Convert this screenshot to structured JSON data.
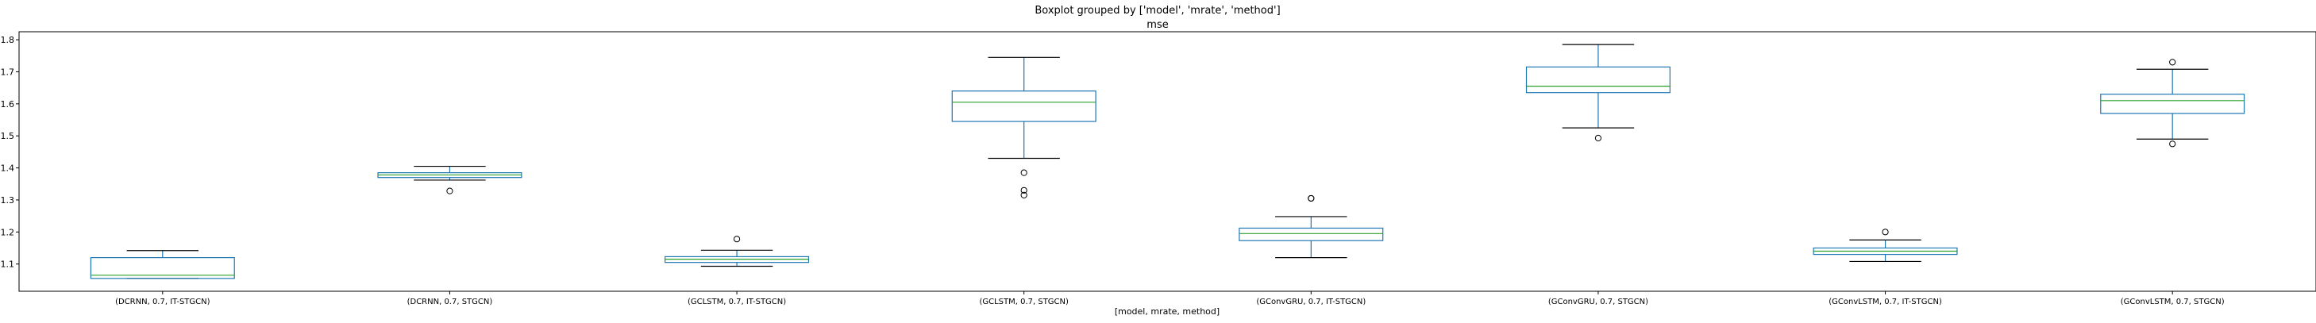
{
  "suptitle": "Boxplot grouped by ['model', 'mrate', 'method']",
  "chart_data": {
    "type": "box",
    "title": "mse",
    "xlabel": "[model, mrate, method]",
    "ylabel": "",
    "ylim": [
      1.015,
      1.825
    ],
    "yticks": [
      1.1,
      1.2,
      1.3,
      1.4,
      1.5,
      1.6,
      1.7,
      1.8
    ],
    "grid": false,
    "colors": {
      "box": "#1f77b4",
      "median": "#2ca02c",
      "whisker": "#000000",
      "flier": "#000000"
    },
    "categories": [
      "(DCRNN, 0.7, IT-STGCN)",
      "(DCRNN, 0.7, STGCN)",
      "(GCLSTM, 0.7, IT-STGCN)",
      "(GCLSTM, 0.7, STGCN)",
      "(GConvGRU, 0.7, IT-STGCN)",
      "(GConvGRU, 0.7, STGCN)",
      "(GConvLSTM, 0.7, IT-STGCN)",
      "(GConvLSTM, 0.7, STGCN)"
    ],
    "boxes": [
      {
        "whislo": 1.055,
        "q1": 1.055,
        "med": 1.065,
        "q3": 1.12,
        "whishi": 1.142,
        "fliers": []
      },
      {
        "whislo": 1.362,
        "q1": 1.37,
        "med": 1.378,
        "q3": 1.385,
        "whishi": 1.405,
        "fliers": [
          1.328
        ]
      },
      {
        "whislo": 1.093,
        "q1": 1.105,
        "med": 1.115,
        "q3": 1.123,
        "whishi": 1.143,
        "fliers": [
          1.178
        ]
      },
      {
        "whislo": 1.43,
        "q1": 1.545,
        "med": 1.605,
        "q3": 1.64,
        "whishi": 1.745,
        "fliers": [
          1.385,
          1.33,
          1.315
        ]
      },
      {
        "whislo": 1.12,
        "q1": 1.173,
        "med": 1.195,
        "q3": 1.212,
        "whishi": 1.248,
        "fliers": [
          1.305,
          1.305
        ]
      },
      {
        "whislo": 1.525,
        "q1": 1.635,
        "med": 1.655,
        "q3": 1.715,
        "whishi": 1.785,
        "fliers": [
          1.493
        ]
      },
      {
        "whislo": 1.108,
        "q1": 1.13,
        "med": 1.14,
        "q3": 1.15,
        "whishi": 1.175,
        "fliers": [
          1.2
        ]
      },
      {
        "whislo": 1.49,
        "q1": 1.57,
        "med": 1.61,
        "q3": 1.63,
        "whishi": 1.708,
        "fliers": [
          1.73,
          1.475
        ]
      }
    ]
  }
}
